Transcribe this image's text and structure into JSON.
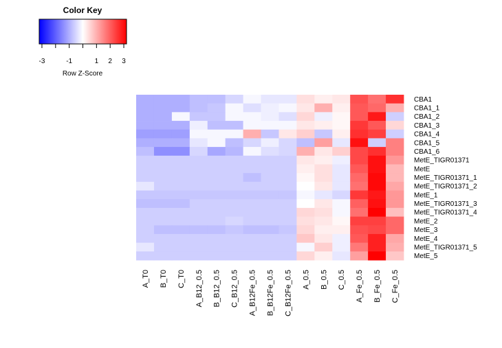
{
  "chart_data": {
    "type": "heatmap",
    "color_key": {
      "title": "Color Key",
      "xlabel": "Row Z-Score",
      "ticks": [
        "-3",
        "-1",
        "1",
        "2",
        "3"
      ],
      "range": [
        -3.2,
        3.2
      ],
      "low_color": "#0000FF",
      "mid_color": "#FFFFFF",
      "high_color": "#FF0000"
    },
    "columns": [
      "A_T0",
      "B_T0",
      "C_T0",
      "A_B12_0.5",
      "B_B12_0.5",
      "C_B12_0.5",
      "A_B12Fe_0.5",
      "B_B12Fe_0.5",
      "C_B12Fe_0.5",
      "A_0.5",
      "B_0.5",
      "C_0.5",
      "A_Fe_0.5",
      "B_Fe_0.5",
      "C_Fe_0.5"
    ],
    "rows": [
      "CBA1",
      "CBA1_1",
      "CBA1_2",
      "CBA1_3",
      "CBA1_4",
      "CBA1_5",
      "CBA1_6",
      "MetE_TIGR01371",
      "MetE",
      "MetE_TIGR01371_1",
      "MetE_TIGR01371_2",
      "MetE_1",
      "MetE_TIGR01371_3",
      "MetE_TIGR01371_4",
      "MetE_2",
      "MetE_3",
      "MetE_4",
      "MetE_TIGR01371_5",
      "MetE_5"
    ],
    "values": [
      [
        -1.0,
        -1.0,
        -1.0,
        -0.8,
        -0.8,
        -0.5,
        -0.1,
        -0.3,
        -0.3,
        0.4,
        0.2,
        0.3,
        2.2,
        1.8,
        2.6
      ],
      [
        -1.0,
        -1.0,
        -1.0,
        -0.8,
        -0.7,
        -0.1,
        -0.4,
        -0.2,
        -0.1,
        0.3,
        1.0,
        0.2,
        2.1,
        1.9,
        1.0
      ],
      [
        -1.0,
        -1.0,
        -0.1,
        -0.7,
        -0.7,
        -0.1,
        -0.1,
        -0.2,
        -0.4,
        0.5,
        -0.2,
        0.1,
        2.1,
        2.9,
        -0.6
      ],
      [
        -1.0,
        -1.0,
        -1.0,
        -0.2,
        -0.8,
        -0.8,
        -0.1,
        -0.1,
        -0.1,
        0.3,
        0.2,
        0.1,
        2.5,
        2.1,
        0.5
      ],
      [
        -1.2,
        -1.2,
        -1.2,
        -0.1,
        -0.1,
        -0.1,
        1.0,
        -0.7,
        0.3,
        0.6,
        -0.7,
        0.2,
        2.6,
        2.4,
        -0.6
      ],
      [
        -1.0,
        -1.0,
        -1.0,
        -0.3,
        -0.1,
        -0.8,
        -0.5,
        -0.2,
        -0.5,
        -0.8,
        1.2,
        -0.3,
        3.0,
        -0.6,
        1.6
      ],
      [
        -0.8,
        -1.4,
        -1.4,
        -0.5,
        -1.1,
        -0.9,
        -0.1,
        -0.4,
        -0.5,
        1.0,
        0.3,
        0.6,
        2.3,
        2.6,
        1.6
      ],
      [
        -0.6,
        -0.6,
        -0.6,
        -0.6,
        -0.6,
        -0.6,
        -0.6,
        -0.6,
        -0.6,
        0.3,
        0.2,
        -0.2,
        2.3,
        3.0,
        1.3
      ],
      [
        -0.6,
        -0.6,
        -0.6,
        -0.6,
        -0.6,
        -0.6,
        -0.6,
        -0.6,
        -0.6,
        0.2,
        0.4,
        -0.3,
        2.1,
        3.0,
        0.9
      ],
      [
        -0.6,
        -0.6,
        -0.6,
        -0.6,
        -0.6,
        -0.6,
        -0.8,
        -0.6,
        -0.6,
        0.1,
        0.4,
        -0.3,
        1.9,
        3.1,
        0.9
      ],
      [
        -0.3,
        -0.6,
        -0.6,
        -0.6,
        -0.6,
        -0.6,
        -0.6,
        -0.6,
        -0.6,
        0.0,
        0.3,
        -0.3,
        1.8,
        3.1,
        1.1
      ],
      [
        -0.7,
        -0.7,
        -0.7,
        -0.7,
        -0.7,
        -0.7,
        -0.7,
        -0.7,
        -0.7,
        -0.1,
        -0.3,
        -0.5,
        2.5,
        2.9,
        1.3
      ],
      [
        -0.8,
        -0.8,
        -0.8,
        -0.6,
        -0.6,
        -0.6,
        -0.6,
        -0.6,
        -0.6,
        0.0,
        0.3,
        -0.1,
        2.0,
        3.0,
        1.3
      ],
      [
        -0.6,
        -0.6,
        -0.6,
        -0.6,
        -0.6,
        -0.6,
        -0.6,
        -0.6,
        -0.6,
        0.5,
        0.4,
        -0.1,
        1.8,
        3.2,
        0.8
      ],
      [
        -0.6,
        -0.6,
        -0.6,
        -0.6,
        -0.6,
        -0.5,
        -0.6,
        -0.6,
        -0.6,
        0.4,
        0.3,
        0.1,
        2.4,
        2.4,
        1.9
      ],
      [
        -0.6,
        -0.8,
        -0.8,
        -0.8,
        -0.8,
        -0.7,
        -0.8,
        -0.8,
        -0.7,
        0.5,
        0.2,
        0.2,
        2.2,
        2.3,
        1.9
      ],
      [
        -0.6,
        -0.6,
        -0.6,
        -0.6,
        -0.6,
        -0.6,
        -0.6,
        -0.6,
        -0.6,
        0.7,
        0.3,
        -0.2,
        2.1,
        2.8,
        1.1
      ],
      [
        -0.3,
        -0.6,
        -0.6,
        -0.6,
        -0.6,
        -0.6,
        -0.6,
        -0.6,
        -0.6,
        -0.1,
        0.6,
        -0.2,
        1.7,
        2.8,
        1.0
      ],
      [
        -0.6,
        -0.6,
        -0.6,
        -0.6,
        -0.6,
        -0.6,
        -0.6,
        -0.6,
        -0.6,
        0.5,
        0.2,
        -0.3,
        1.2,
        3.2,
        0.7
      ]
    ]
  }
}
